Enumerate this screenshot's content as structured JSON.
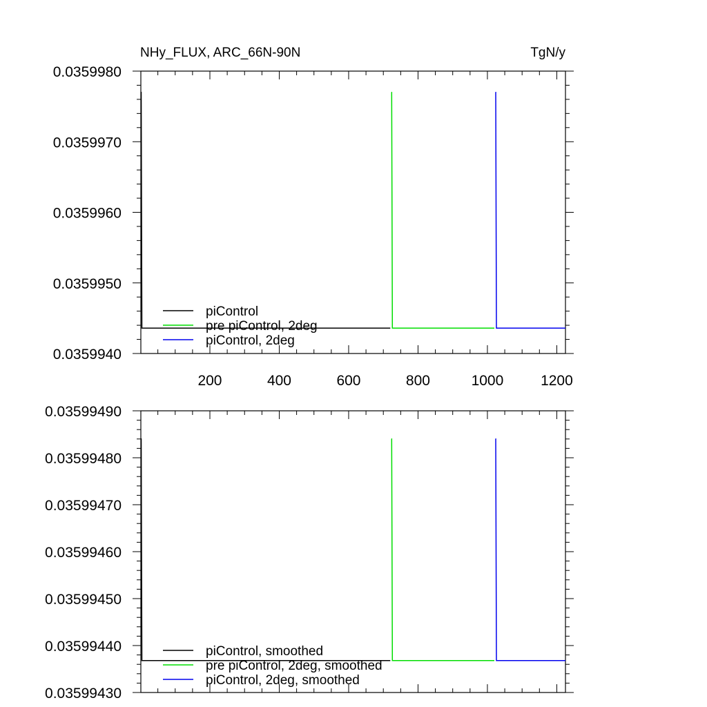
{
  "chart_data": [
    {
      "type": "line",
      "title_left": "NHy_FLUX, ARC_66N-90N",
      "title_right": "TgN/y",
      "xlim": [
        1,
        1225
      ],
      "ylim": [
        0.035994,
        0.035998
      ],
      "x_ticks": [
        200,
        400,
        600,
        800,
        1000,
        1200
      ],
      "x_tick_labels": [
        "200",
        "400",
        "600",
        "800",
        "1000",
        "1200"
      ],
      "y_ticks": [
        0.035994,
        0.035995,
        0.035996,
        0.035997,
        0.035998
      ],
      "y_tick_labels": [
        "0.0359940",
        "0.0359950",
        "0.0359960",
        "0.0359970",
        "0.0359980"
      ],
      "legend_position": "bottom-left",
      "series": [
        {
          "name": "piControl",
          "color": "#000000",
          "x": [
            1,
            2,
            4,
            720
          ],
          "y": [
            0.0359977,
            0.0359977,
            0.03599436,
            0.03599436
          ]
        },
        {
          "name": "pre piControl, 2deg",
          "color": "#00dd00",
          "x": [
            723,
            724,
            726,
            1020
          ],
          "y": [
            0.0359977,
            0.0359977,
            0.03599436,
            0.03599436
          ]
        },
        {
          "name": "piControl, 2deg",
          "color": "#0000ee",
          "x": [
            1023,
            1024,
            1026,
            1225
          ],
          "y": [
            0.0359977,
            0.0359977,
            0.03599436,
            0.03599436
          ]
        }
      ]
    },
    {
      "type": "line",
      "xlim": [
        1,
        1225
      ],
      "ylim": [
        0.0359943,
        0.0359949
      ],
      "x_ticks": [
        200,
        400,
        600,
        800,
        1000,
        1200
      ],
      "y_ticks": [
        0.0359943,
        0.0359944,
        0.0359945,
        0.0359946,
        0.0359947,
        0.0359948,
        0.0359949
      ],
      "y_tick_labels": [
        "0.03599430",
        "0.03599440",
        "0.03599450",
        "0.03599460",
        "0.03599470",
        "0.03599480",
        "0.03599490"
      ],
      "legend_position": "bottom-left",
      "series": [
        {
          "name": "piControl, smoothed",
          "color": "#000000",
          "x": [
            1,
            2,
            4,
            720
          ],
          "y": [
            0.03599484,
            0.03599484,
            0.035994368,
            0.035994368
          ]
        },
        {
          "name": "pre piControl, 2deg, smoothed",
          "color": "#00dd00",
          "x": [
            723,
            724,
            726,
            1020
          ],
          "y": [
            0.03599484,
            0.03599484,
            0.035994368,
            0.035994368
          ]
        },
        {
          "name": "piControl, 2deg, smoothed",
          "color": "#0000ee",
          "x": [
            1023,
            1024,
            1026,
            1225
          ],
          "y": [
            0.03599484,
            0.03599484,
            0.035994368,
            0.035994368
          ]
        }
      ]
    }
  ]
}
